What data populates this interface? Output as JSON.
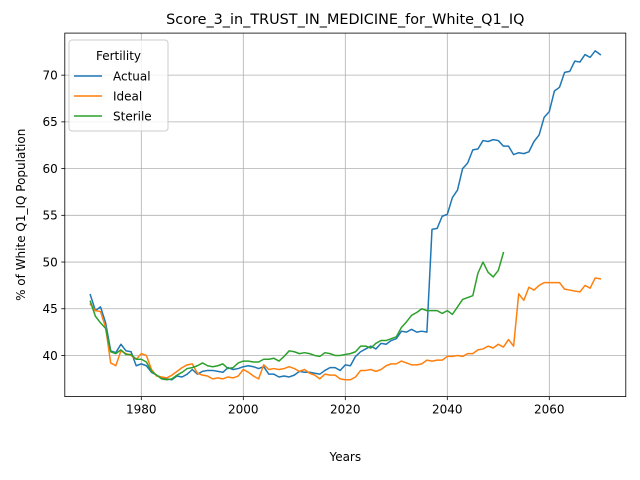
{
  "chart_data": {
    "type": "line",
    "title": "Score_3_in_TRUST_IN_MEDICINE_for_White_Q1_IQ",
    "xlabel": "Years",
    "ylabel": "% of White Q1_IQ Population",
    "xlim": [
      1965,
      2075
    ],
    "ylim": [
      35.6,
      74.5
    ],
    "xticks": [
      1980,
      2000,
      2020,
      2040,
      2060
    ],
    "yticks": [
      40,
      45,
      50,
      55,
      60,
      65,
      70
    ],
    "grid": true,
    "legend": {
      "title": "Fertility",
      "placement": "top-left"
    },
    "series": [
      {
        "name": "Actual",
        "color": "#1f77b4",
        "points": [
          [
            1970,
            46.5
          ],
          [
            1971,
            44.8
          ],
          [
            1972,
            45.2
          ],
          [
            1973,
            43.5
          ],
          [
            1974,
            40.5
          ],
          [
            1975,
            40.3
          ],
          [
            1976,
            41.2
          ],
          [
            1977,
            40.5
          ],
          [
            1978,
            40.4
          ],
          [
            1979,
            38.9
          ],
          [
            1980,
            39.1
          ],
          [
            1981,
            38.9
          ],
          [
            1982,
            38.2
          ],
          [
            1983,
            37.9
          ],
          [
            1984,
            37.6
          ],
          [
            1985,
            37.5
          ],
          [
            1986,
            37.4
          ],
          [
            1987,
            37.8
          ],
          [
            1988,
            37.7
          ],
          [
            1989,
            38.0
          ],
          [
            1990,
            38.5
          ],
          [
            1991,
            38.0
          ],
          [
            1992,
            38.3
          ],
          [
            1993,
            38.4
          ],
          [
            1994,
            38.4
          ],
          [
            1995,
            38.3
          ],
          [
            1996,
            38.2
          ],
          [
            1997,
            38.7
          ],
          [
            1998,
            38.5
          ],
          [
            1999,
            38.6
          ],
          [
            2000,
            38.8
          ],
          [
            2001,
            38.9
          ],
          [
            2002,
            38.8
          ],
          [
            2003,
            38.6
          ],
          [
            2004,
            38.8
          ],
          [
            2005,
            38.0
          ],
          [
            2006,
            38.0
          ],
          [
            2007,
            37.7
          ],
          [
            2008,
            37.8
          ],
          [
            2009,
            37.7
          ],
          [
            2010,
            37.9
          ],
          [
            2011,
            38.3
          ],
          [
            2012,
            38.2
          ],
          [
            2013,
            38.2
          ],
          [
            2014,
            38.1
          ],
          [
            2015,
            38.0
          ],
          [
            2016,
            38.4
          ],
          [
            2017,
            38.7
          ],
          [
            2018,
            38.7
          ],
          [
            2019,
            38.4
          ],
          [
            2020,
            39.0
          ],
          [
            2021,
            38.9
          ],
          [
            2022,
            39.9
          ],
          [
            2023,
            40.4
          ],
          [
            2024,
            40.7
          ],
          [
            2025,
            41.0
          ],
          [
            2026,
            40.7
          ],
          [
            2027,
            41.3
          ],
          [
            2028,
            41.2
          ],
          [
            2029,
            41.6
          ],
          [
            2030,
            41.8
          ],
          [
            2031,
            42.6
          ],
          [
            2032,
            42.5
          ],
          [
            2033,
            42.8
          ],
          [
            2034,
            42.5
          ],
          [
            2035,
            42.6
          ],
          [
            2036,
            42.5
          ],
          [
            2037,
            53.5
          ],
          [
            2038,
            53.6
          ],
          [
            2039,
            54.9
          ],
          [
            2040,
            55.1
          ],
          [
            2041,
            56.9
          ],
          [
            2042,
            57.7
          ],
          [
            2043,
            60.0
          ],
          [
            2044,
            60.6
          ],
          [
            2045,
            62.0
          ],
          [
            2046,
            62.1
          ],
          [
            2047,
            63.0
          ],
          [
            2048,
            62.9
          ],
          [
            2049,
            63.1
          ],
          [
            2050,
            63.0
          ],
          [
            2051,
            62.4
          ],
          [
            2052,
            62.4
          ],
          [
            2053,
            61.5
          ],
          [
            2054,
            61.7
          ],
          [
            2055,
            61.6
          ],
          [
            2056,
            61.8
          ],
          [
            2057,
            62.9
          ],
          [
            2058,
            63.6
          ],
          [
            2059,
            65.5
          ],
          [
            2060,
            66.1
          ],
          [
            2061,
            68.3
          ],
          [
            2062,
            68.7
          ],
          [
            2063,
            70.3
          ],
          [
            2064,
            70.4
          ],
          [
            2065,
            71.5
          ],
          [
            2066,
            71.4
          ],
          [
            2067,
            72.2
          ],
          [
            2068,
            71.9
          ],
          [
            2069,
            72.6
          ],
          [
            2070,
            72.2
          ]
        ]
      },
      {
        "name": "Ideal",
        "color": "#ff7f0e",
        "points": [
          [
            1970,
            45.5
          ],
          [
            1971,
            44.8
          ],
          [
            1972,
            44.7
          ],
          [
            1973,
            43.0
          ],
          [
            1974,
            39.2
          ],
          [
            1975,
            38.9
          ],
          [
            1976,
            40.5
          ],
          [
            1977,
            40.2
          ],
          [
            1978,
            40.0
          ],
          [
            1979,
            39.6
          ],
          [
            1980,
            40.2
          ],
          [
            1981,
            40.0
          ],
          [
            1982,
            38.5
          ],
          [
            1983,
            37.8
          ],
          [
            1984,
            37.7
          ],
          [
            1985,
            37.6
          ],
          [
            1986,
            37.9
          ],
          [
            1987,
            38.3
          ],
          [
            1988,
            38.7
          ],
          [
            1989,
            39.0
          ],
          [
            1990,
            39.1
          ],
          [
            1991,
            38.1
          ],
          [
            1992,
            37.9
          ],
          [
            1993,
            37.8
          ],
          [
            1994,
            37.5
          ],
          [
            1995,
            37.6
          ],
          [
            1996,
            37.5
          ],
          [
            1997,
            37.7
          ],
          [
            1998,
            37.6
          ],
          [
            1999,
            37.8
          ],
          [
            2000,
            38.5
          ],
          [
            2001,
            38.2
          ],
          [
            2002,
            37.8
          ],
          [
            2003,
            37.5
          ],
          [
            2004,
            39.0
          ],
          [
            2005,
            38.5
          ],
          [
            2006,
            38.6
          ],
          [
            2007,
            38.5
          ],
          [
            2008,
            38.6
          ],
          [
            2009,
            38.8
          ],
          [
            2010,
            38.6
          ],
          [
            2011,
            38.3
          ],
          [
            2012,
            38.5
          ],
          [
            2013,
            38.1
          ],
          [
            2014,
            37.9
          ],
          [
            2015,
            37.5
          ],
          [
            2016,
            38.0
          ],
          [
            2017,
            37.9
          ],
          [
            2018,
            37.9
          ],
          [
            2019,
            37.5
          ],
          [
            2020,
            37.4
          ],
          [
            2021,
            37.4
          ],
          [
            2022,
            37.7
          ],
          [
            2023,
            38.4
          ],
          [
            2024,
            38.4
          ],
          [
            2025,
            38.5
          ],
          [
            2026,
            38.3
          ],
          [
            2027,
            38.5
          ],
          [
            2028,
            38.9
          ],
          [
            2029,
            39.1
          ],
          [
            2030,
            39.1
          ],
          [
            2031,
            39.4
          ],
          [
            2032,
            39.2
          ],
          [
            2033,
            39.0
          ],
          [
            2034,
            39.0
          ],
          [
            2035,
            39.1
          ],
          [
            2036,
            39.5
          ],
          [
            2037,
            39.4
          ],
          [
            2038,
            39.5
          ],
          [
            2039,
            39.5
          ],
          [
            2040,
            39.9
          ],
          [
            2041,
            39.9
          ],
          [
            2042,
            40.0
          ],
          [
            2043,
            39.9
          ],
          [
            2044,
            40.2
          ],
          [
            2045,
            40.2
          ],
          [
            2046,
            40.6
          ],
          [
            2047,
            40.7
          ],
          [
            2048,
            41.0
          ],
          [
            2049,
            40.8
          ],
          [
            2050,
            41.2
          ],
          [
            2051,
            40.9
          ],
          [
            2052,
            41.7
          ],
          [
            2053,
            41.0
          ],
          [
            2054,
            46.6
          ],
          [
            2055,
            45.9
          ],
          [
            2056,
            47.3
          ],
          [
            2057,
            47.0
          ],
          [
            2058,
            47.5
          ],
          [
            2059,
            47.8
          ],
          [
            2060,
            47.8
          ],
          [
            2061,
            47.8
          ],
          [
            2062,
            47.8
          ],
          [
            2063,
            47.1
          ],
          [
            2064,
            47.0
          ],
          [
            2065,
            46.9
          ],
          [
            2066,
            46.8
          ],
          [
            2067,
            47.5
          ],
          [
            2068,
            47.2
          ],
          [
            2069,
            48.3
          ],
          [
            2070,
            48.2
          ]
        ]
      },
      {
        "name": "Sterile",
        "color": "#2ca02c",
        "points": [
          [
            1970,
            45.8
          ],
          [
            1971,
            44.2
          ],
          [
            1972,
            43.5
          ],
          [
            1973,
            42.9
          ],
          [
            1974,
            40.4
          ],
          [
            1975,
            40.2
          ],
          [
            1976,
            40.6
          ],
          [
            1977,
            40.1
          ],
          [
            1978,
            40.1
          ],
          [
            1979,
            39.6
          ],
          [
            1980,
            39.6
          ],
          [
            1981,
            39.3
          ],
          [
            1982,
            38.3
          ],
          [
            1983,
            37.9
          ],
          [
            1984,
            37.5
          ],
          [
            1985,
            37.4
          ],
          [
            1986,
            37.5
          ],
          [
            1987,
            37.9
          ],
          [
            1988,
            38.2
          ],
          [
            1989,
            38.6
          ],
          [
            1990,
            38.7
          ],
          [
            1991,
            38.9
          ],
          [
            1992,
            39.2
          ],
          [
            1993,
            38.9
          ],
          [
            1994,
            38.8
          ],
          [
            1995,
            38.9
          ],
          [
            1996,
            39.1
          ],
          [
            1997,
            38.6
          ],
          [
            1998,
            38.7
          ],
          [
            1999,
            39.2
          ],
          [
            2000,
            39.4
          ],
          [
            2001,
            39.4
          ],
          [
            2002,
            39.3
          ],
          [
            2003,
            39.3
          ],
          [
            2004,
            39.6
          ],
          [
            2005,
            39.6
          ],
          [
            2006,
            39.7
          ],
          [
            2007,
            39.4
          ],
          [
            2008,
            39.9
          ],
          [
            2009,
            40.5
          ],
          [
            2010,
            40.4
          ],
          [
            2011,
            40.2
          ],
          [
            2012,
            40.3
          ],
          [
            2013,
            40.2
          ],
          [
            2014,
            40.0
          ],
          [
            2015,
            39.9
          ],
          [
            2016,
            40.3
          ],
          [
            2017,
            40.2
          ],
          [
            2018,
            40.0
          ],
          [
            2019,
            40.0
          ],
          [
            2020,
            40.1
          ],
          [
            2021,
            40.2
          ],
          [
            2022,
            40.4
          ],
          [
            2023,
            41.0
          ],
          [
            2024,
            41.0
          ],
          [
            2025,
            40.8
          ],
          [
            2026,
            41.3
          ],
          [
            2027,
            41.6
          ],
          [
            2028,
            41.6
          ],
          [
            2029,
            41.8
          ],
          [
            2030,
            42.0
          ],
          [
            2031,
            43.0
          ],
          [
            2032,
            43.6
          ],
          [
            2033,
            44.3
          ],
          [
            2034,
            44.6
          ],
          [
            2035,
            45.0
          ],
          [
            2036,
            44.8
          ],
          [
            2037,
            44.8
          ],
          [
            2038,
            44.8
          ],
          [
            2039,
            44.5
          ],
          [
            2040,
            44.8
          ],
          [
            2041,
            44.4
          ],
          [
            2042,
            45.2
          ],
          [
            2043,
            46.0
          ],
          [
            2044,
            46.2
          ],
          [
            2045,
            46.4
          ],
          [
            2046,
            48.8
          ],
          [
            2047,
            50.0
          ],
          [
            2048,
            48.9
          ],
          [
            2049,
            48.4
          ],
          [
            2050,
            49.1
          ],
          [
            2051,
            51.0
          ]
        ]
      }
    ]
  }
}
